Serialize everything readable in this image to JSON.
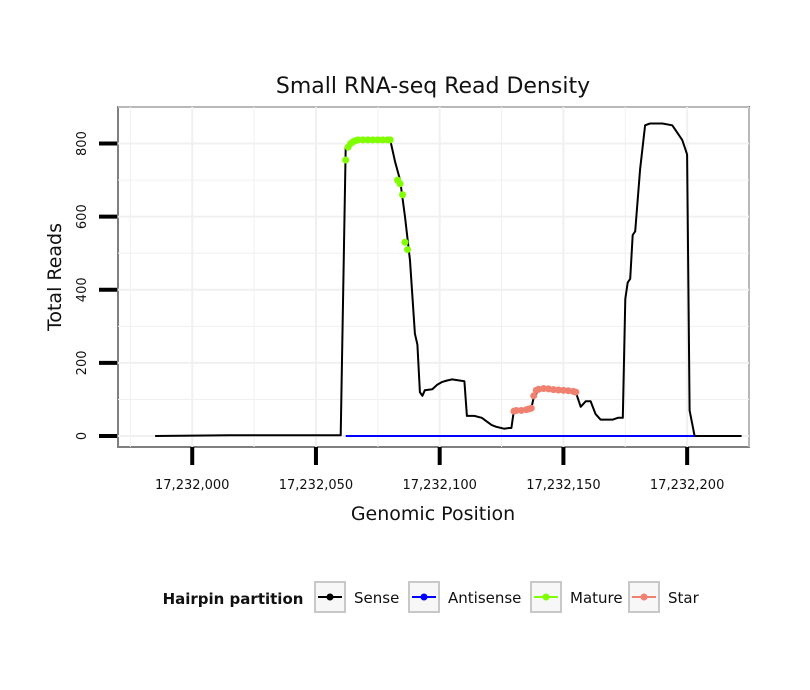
{
  "chart_data": {
    "type": "line",
    "title": "Small RNA-seq Read Density",
    "xlabel": "Genomic Position",
    "ylabel": "Total Reads",
    "xlim": [
      17231970,
      17232225
    ],
    "ylim": [
      -30,
      900
    ],
    "x_ticks": [
      17232000,
      17232050,
      17232100,
      17232150,
      17232200
    ],
    "x_tick_labels": [
      "17,232,000",
      "17,232,050",
      "17,232,100",
      "17,232,150",
      "17,232,200"
    ],
    "y_ticks": [
      0,
      200,
      400,
      600,
      800
    ],
    "y_tick_labels": [
      "0",
      "200",
      "400",
      "600",
      "800"
    ],
    "grid": true,
    "legend": {
      "title": "Hairpin partition",
      "position": "bottom",
      "entries": [
        {
          "name": "Sense",
          "color": "#000000"
        },
        {
          "name": "Antisense",
          "color": "#0000ff"
        },
        {
          "name": "Mature",
          "color": "#7fff00"
        },
        {
          "name": "Star",
          "color": "#f08070"
        }
      ]
    },
    "series": [
      {
        "name": "Sense",
        "color": "#000000",
        "kind": "line",
        "points": [
          [
            17231985,
            0
          ],
          [
            17232015,
            2
          ],
          [
            17232060,
            2
          ],
          [
            17232062,
            790
          ],
          [
            17232064,
            805
          ],
          [
            17232067,
            810
          ],
          [
            17232070,
            810
          ],
          [
            17232078,
            810
          ],
          [
            17232080,
            810
          ],
          [
            17232082,
            750
          ],
          [
            17232084,
            700
          ],
          [
            17232086,
            600
          ],
          [
            17232088,
            480
          ],
          [
            17232090,
            280
          ],
          [
            17232091,
            250
          ],
          [
            17232092,
            120
          ],
          [
            17232093,
            110
          ],
          [
            17232094,
            125
          ],
          [
            17232097,
            128
          ],
          [
            17232099,
            140
          ],
          [
            17232101,
            148
          ],
          [
            17232103,
            152
          ],
          [
            17232105,
            155
          ],
          [
            17232108,
            152
          ],
          [
            17232110,
            150
          ],
          [
            17232111,
            55
          ],
          [
            17232114,
            55
          ],
          [
            17232117,
            50
          ],
          [
            17232119,
            40
          ],
          [
            17232121,
            30
          ],
          [
            17232123,
            25
          ],
          [
            17232126,
            20
          ],
          [
            17232128,
            22
          ],
          [
            17232129,
            22
          ],
          [
            17232130,
            70
          ],
          [
            17232134,
            70
          ],
          [
            17232137,
            75
          ],
          [
            17232138,
            105
          ],
          [
            17232140,
            125
          ],
          [
            17232143,
            130
          ],
          [
            17232148,
            127
          ],
          [
            17232153,
            125
          ],
          [
            17232155,
            120
          ],
          [
            17232157,
            80
          ],
          [
            17232159,
            95
          ],
          [
            17232161,
            95
          ],
          [
            17232163,
            60
          ],
          [
            17232165,
            45
          ],
          [
            17232170,
            45
          ],
          [
            17232172,
            50
          ],
          [
            17232174,
            50
          ],
          [
            17232175,
            375
          ],
          [
            17232176,
            420
          ],
          [
            17232177,
            430
          ],
          [
            17232178,
            550
          ],
          [
            17232179,
            560
          ],
          [
            17232181,
            730
          ],
          [
            17232183,
            850
          ],
          [
            17232185,
            855
          ],
          [
            17232190,
            855
          ],
          [
            17232194,
            850
          ],
          [
            17232196,
            830
          ],
          [
            17232198,
            810
          ],
          [
            17232199,
            790
          ],
          [
            17232200,
            770
          ],
          [
            17232201,
            70
          ],
          [
            17232203,
            0
          ],
          [
            17232222,
            0
          ]
        ]
      },
      {
        "name": "Antisense",
        "color": "#0000ff",
        "kind": "line",
        "points": [
          [
            17232062,
            0
          ],
          [
            17232203,
            0
          ]
        ]
      },
      {
        "name": "Mature",
        "color": "#7fff00",
        "kind": "points",
        "points": [
          [
            17232062,
            755
          ],
          [
            17232063,
            790
          ],
          [
            17232064,
            800
          ],
          [
            17232065,
            805
          ],
          [
            17232066,
            808
          ],
          [
            17232067,
            810
          ],
          [
            17232069,
            810
          ],
          [
            17232071,
            810
          ],
          [
            17232073,
            810
          ],
          [
            17232075,
            810
          ],
          [
            17232077,
            810
          ],
          [
            17232079,
            810
          ],
          [
            17232080,
            810
          ],
          [
            17232083,
            700
          ],
          [
            17232084,
            690
          ],
          [
            17232085,
            660
          ],
          [
            17232086,
            530
          ],
          [
            17232087,
            510
          ]
        ]
      },
      {
        "name": "Star",
        "color": "#f08070",
        "kind": "points",
        "points": [
          [
            17232130,
            68
          ],
          [
            17232131,
            70
          ],
          [
            17232133,
            70
          ],
          [
            17232135,
            72
          ],
          [
            17232136,
            74
          ],
          [
            17232137,
            76
          ],
          [
            17232138,
            110
          ],
          [
            17232139,
            125
          ],
          [
            17232140,
            128
          ],
          [
            17232142,
            130
          ],
          [
            17232144,
            129
          ],
          [
            17232146,
            127
          ],
          [
            17232148,
            126
          ],
          [
            17232150,
            125
          ],
          [
            17232152,
            124
          ],
          [
            17232154,
            122
          ],
          [
            17232155,
            120
          ]
        ]
      }
    ]
  }
}
